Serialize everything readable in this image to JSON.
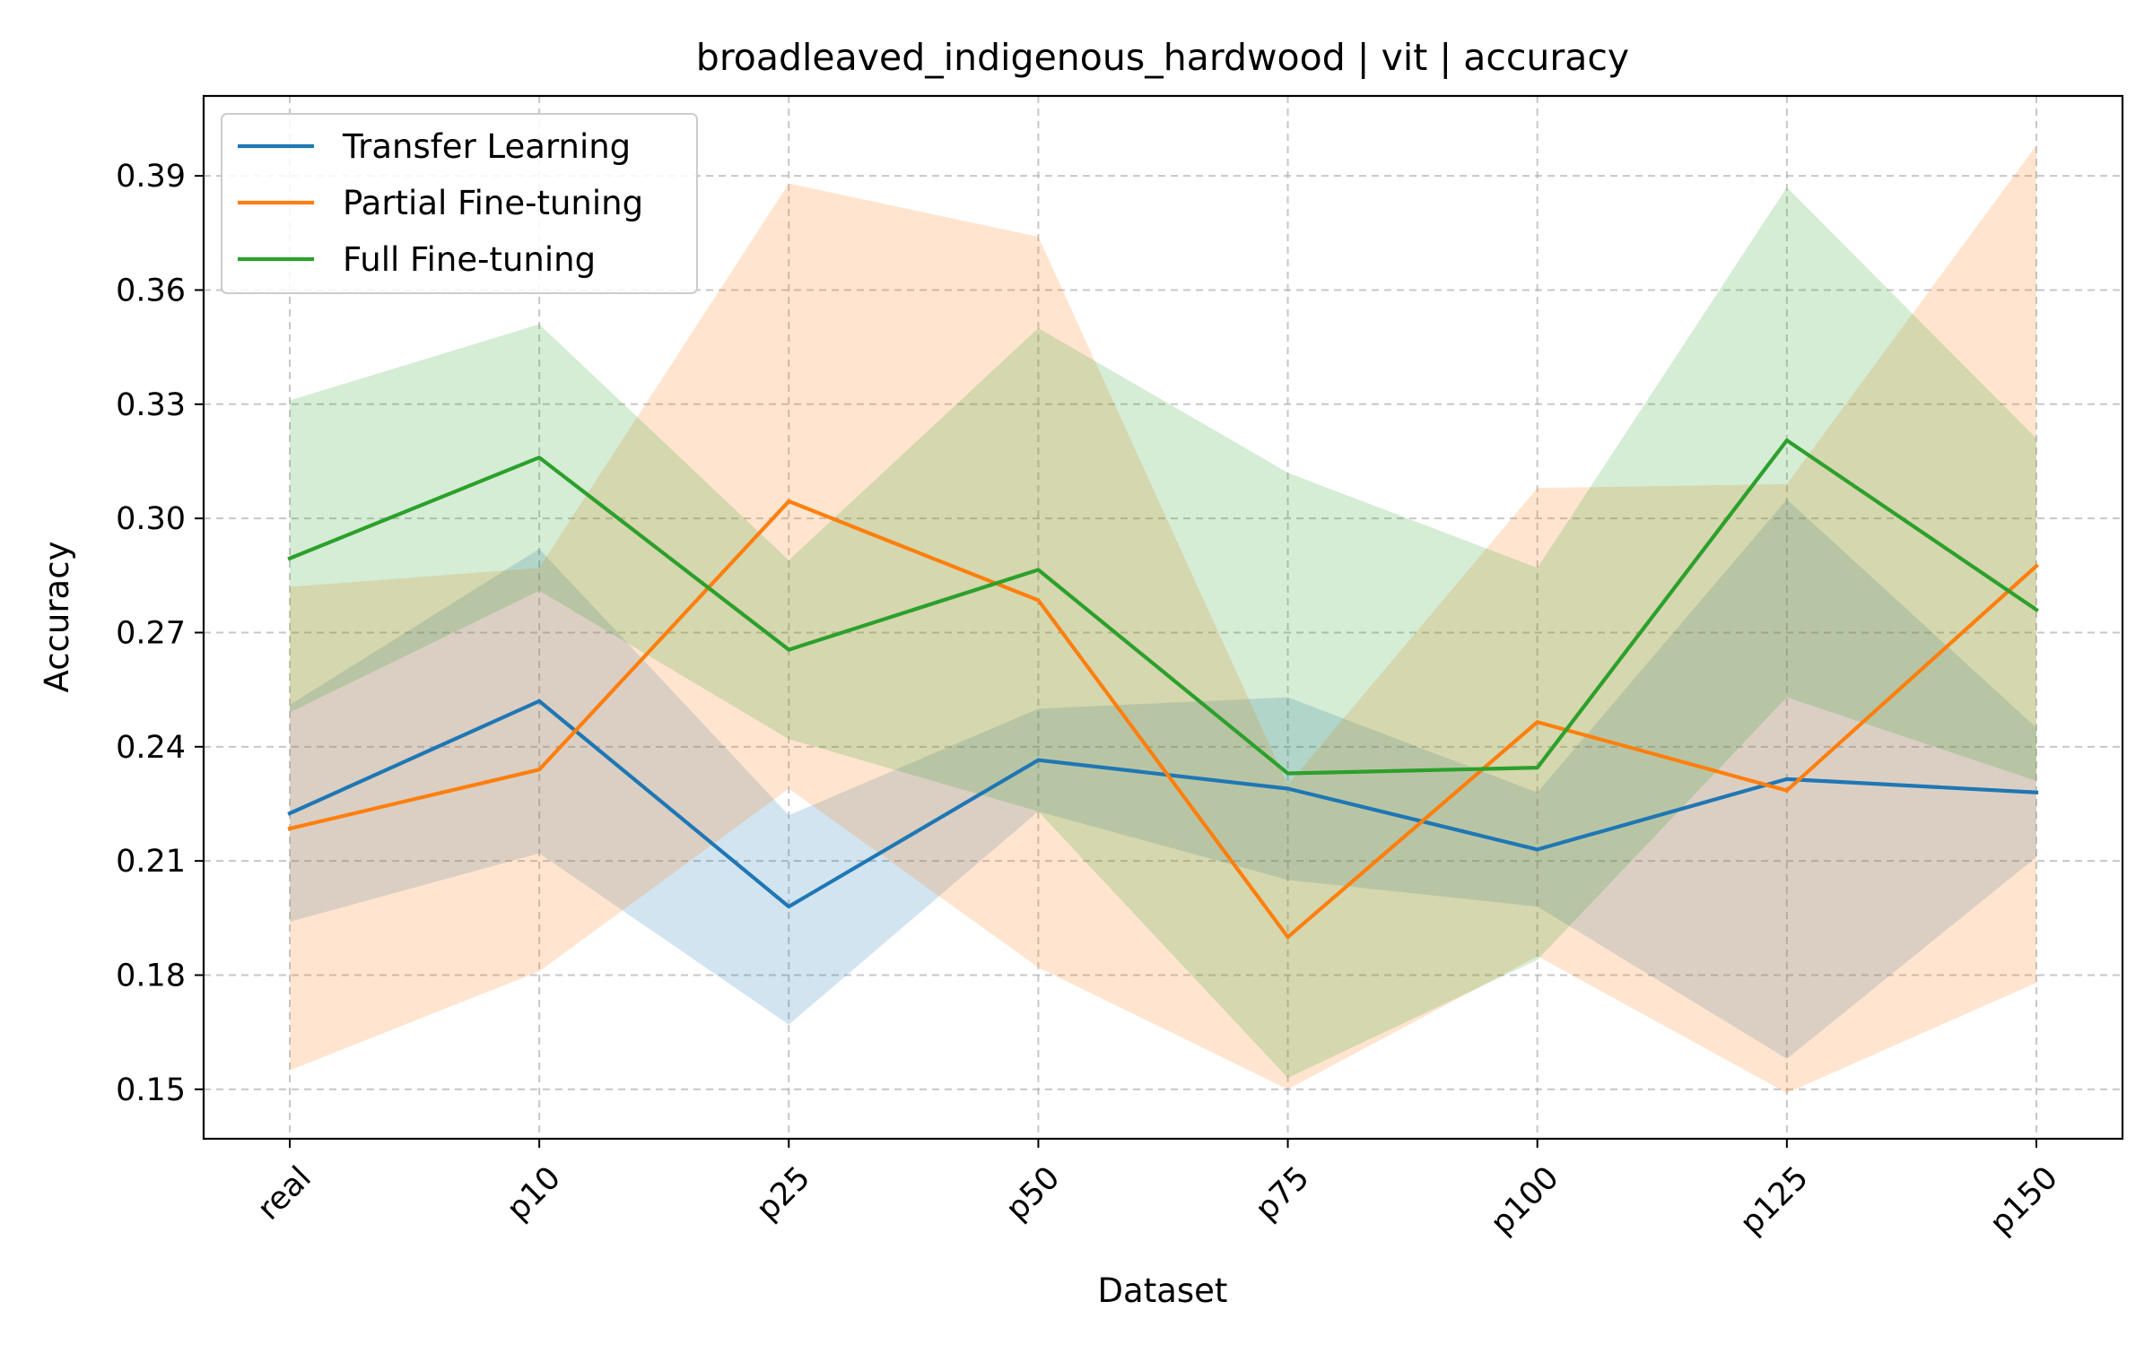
{
  "chart_data": {
    "type": "line",
    "title": "broadleaved_indigenous_hardwood | vit | accuracy",
    "xlabel": "Dataset",
    "ylabel": "Accuracy",
    "categories": [
      "real",
      "p10",
      "p25",
      "p50",
      "p75",
      "p100",
      "p125",
      "p150"
    ],
    "ylim": [
      0.137,
      0.411
    ],
    "yticks": [
      "0.15",
      "0.18",
      "0.21",
      "0.24",
      "0.27",
      "0.30",
      "0.33",
      "0.36",
      "0.39"
    ],
    "grid": true,
    "legend_position": "top-left",
    "series": [
      {
        "name": "Transfer Learning",
        "color": "#1f77b4",
        "values": [
          0.2225,
          0.252,
          0.198,
          0.2365,
          0.229,
          0.213,
          0.2315,
          0.228
        ],
        "lower": [
          0.194,
          0.212,
          0.167,
          0.223,
          0.205,
          0.198,
          0.158,
          0.211
        ],
        "upper": [
          0.251,
          0.292,
          0.222,
          0.25,
          0.253,
          0.228,
          0.305,
          0.245
        ]
      },
      {
        "name": "Partial Fine-tuning",
        "color": "#ff7f0e",
        "values": [
          0.2185,
          0.234,
          0.3045,
          0.2785,
          0.19,
          0.2465,
          0.2285,
          0.2875
        ],
        "lower": [
          0.155,
          0.181,
          0.229,
          0.182,
          0.15,
          0.185,
          0.149,
          0.178
        ],
        "upper": [
          0.282,
          0.287,
          0.388,
          0.374,
          0.23,
          0.308,
          0.309,
          0.398
        ]
      },
      {
        "name": "Full Fine-tuning",
        "color": "#2ca02c",
        "values": [
          0.2895,
          0.316,
          0.2655,
          0.2865,
          0.233,
          0.2345,
          0.3205,
          0.276
        ],
        "lower": [
          0.249,
          0.281,
          0.242,
          0.223,
          0.153,
          0.184,
          0.253,
          0.231
        ],
        "upper": [
          0.331,
          0.351,
          0.289,
          0.35,
          0.312,
          0.287,
          0.387,
          0.321
        ]
      }
    ]
  }
}
